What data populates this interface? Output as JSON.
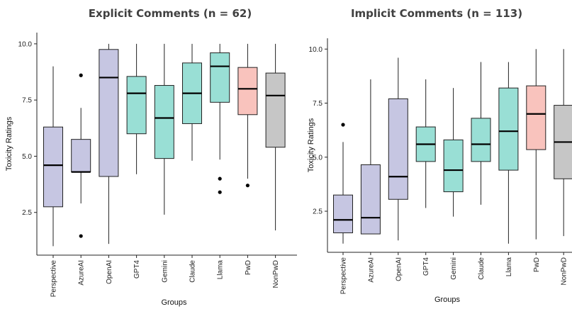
{
  "chart_data": [
    {
      "type": "box",
      "title": "Explicit Comments (n = 62)",
      "xlabel": "Groups",
      "ylabel": "Toxicity Ratings",
      "yticks": [
        "2.5",
        "5.0",
        "7.5",
        "10.0"
      ],
      "ylim": [
        0.6,
        10.5
      ],
      "categories": [
        "Perspective",
        "AzureAI",
        "OpenAI",
        "GPT4",
        "Gemini",
        "Claude",
        "Llama",
        "PwD",
        "NonPwD"
      ],
      "colors": [
        "#c6c6e2",
        "#c6c6e2",
        "#c6c6e2",
        "#99dfd5",
        "#99dfd5",
        "#99dfd5",
        "#99dfd5",
        "#f9c3bd",
        "#c6c6c6"
      ],
      "boxes": [
        {
          "min": 1.0,
          "q1": 2.75,
          "median": 4.6,
          "q3": 6.3,
          "max": 9.0,
          "outliers": []
        },
        {
          "min": 2.9,
          "q1": 4.3,
          "median": 4.3,
          "q3": 5.75,
          "max": 7.15,
          "outliers": [
            8.6,
            1.45
          ]
        },
        {
          "min": 1.1,
          "q1": 4.1,
          "median": 8.5,
          "q3": 9.75,
          "max": 10.0,
          "outliers": []
        },
        {
          "min": 4.2,
          "q1": 6.0,
          "median": 7.8,
          "q3": 8.55,
          "max": 10.0,
          "outliers": []
        },
        {
          "min": 2.4,
          "q1": 4.9,
          "median": 6.7,
          "q3": 8.15,
          "max": 10.0,
          "outliers": []
        },
        {
          "min": 4.8,
          "q1": 6.45,
          "median": 7.8,
          "q3": 9.15,
          "max": 10.0,
          "outliers": []
        },
        {
          "min": 4.85,
          "q1": 7.4,
          "median": 9.0,
          "q3": 9.6,
          "max": 10.0,
          "outliers": [
            4.0,
            3.4
          ]
        },
        {
          "min": 4.0,
          "q1": 6.85,
          "median": 8.0,
          "q3": 8.95,
          "max": 10.0,
          "outliers": [
            3.7
          ]
        },
        {
          "min": 1.7,
          "q1": 5.4,
          "median": 7.7,
          "q3": 8.7,
          "max": 10.0,
          "outliers": []
        }
      ]
    },
    {
      "type": "box",
      "title": "Implicit Comments (n = 113)",
      "xlabel": "Groups",
      "ylabel": "Toxicity Ratings",
      "yticks": [
        "2.5",
        "5.0",
        "7.5",
        "10.0"
      ],
      "ylim": [
        0.6,
        10.5
      ],
      "categories": [
        "Perspective",
        "AzureAI",
        "OpenAI",
        "GPT4",
        "Gemini",
        "Claude",
        "Llama",
        "PwD",
        "NonPwD"
      ],
      "colors": [
        "#c6c6e2",
        "#c6c6e2",
        "#c6c6e2",
        "#99dfd5",
        "#99dfd5",
        "#99dfd5",
        "#99dfd5",
        "#f9c3bd",
        "#c6c6c6"
      ],
      "boxes": [
        {
          "min": 1.0,
          "q1": 1.5,
          "median": 2.1,
          "q3": 3.25,
          "max": 5.7,
          "outliers": [
            6.5
          ]
        },
        {
          "min": 1.45,
          "q1": 1.45,
          "median": 2.2,
          "q3": 4.65,
          "max": 8.6,
          "outliers": []
        },
        {
          "min": 1.15,
          "q1": 3.05,
          "median": 4.1,
          "q3": 7.7,
          "max": 9.6,
          "outliers": []
        },
        {
          "min": 2.65,
          "q1": 4.8,
          "median": 5.6,
          "q3": 6.4,
          "max": 8.6,
          "outliers": []
        },
        {
          "min": 2.25,
          "q1": 3.4,
          "median": 4.4,
          "q3": 5.8,
          "max": 8.2,
          "outliers": []
        },
        {
          "min": 2.8,
          "q1": 4.8,
          "median": 5.6,
          "q3": 6.8,
          "max": 9.4,
          "outliers": []
        },
        {
          "min": 1.0,
          "q1": 4.4,
          "median": 6.2,
          "q3": 8.2,
          "max": 9.4,
          "outliers": []
        },
        {
          "min": 1.2,
          "q1": 5.35,
          "median": 7.0,
          "q3": 8.3,
          "max": 10.0,
          "outliers": []
        },
        {
          "min": 1.35,
          "q1": 4.0,
          "median": 5.7,
          "q3": 7.4,
          "max": 10.0,
          "outliers": []
        }
      ]
    }
  ]
}
